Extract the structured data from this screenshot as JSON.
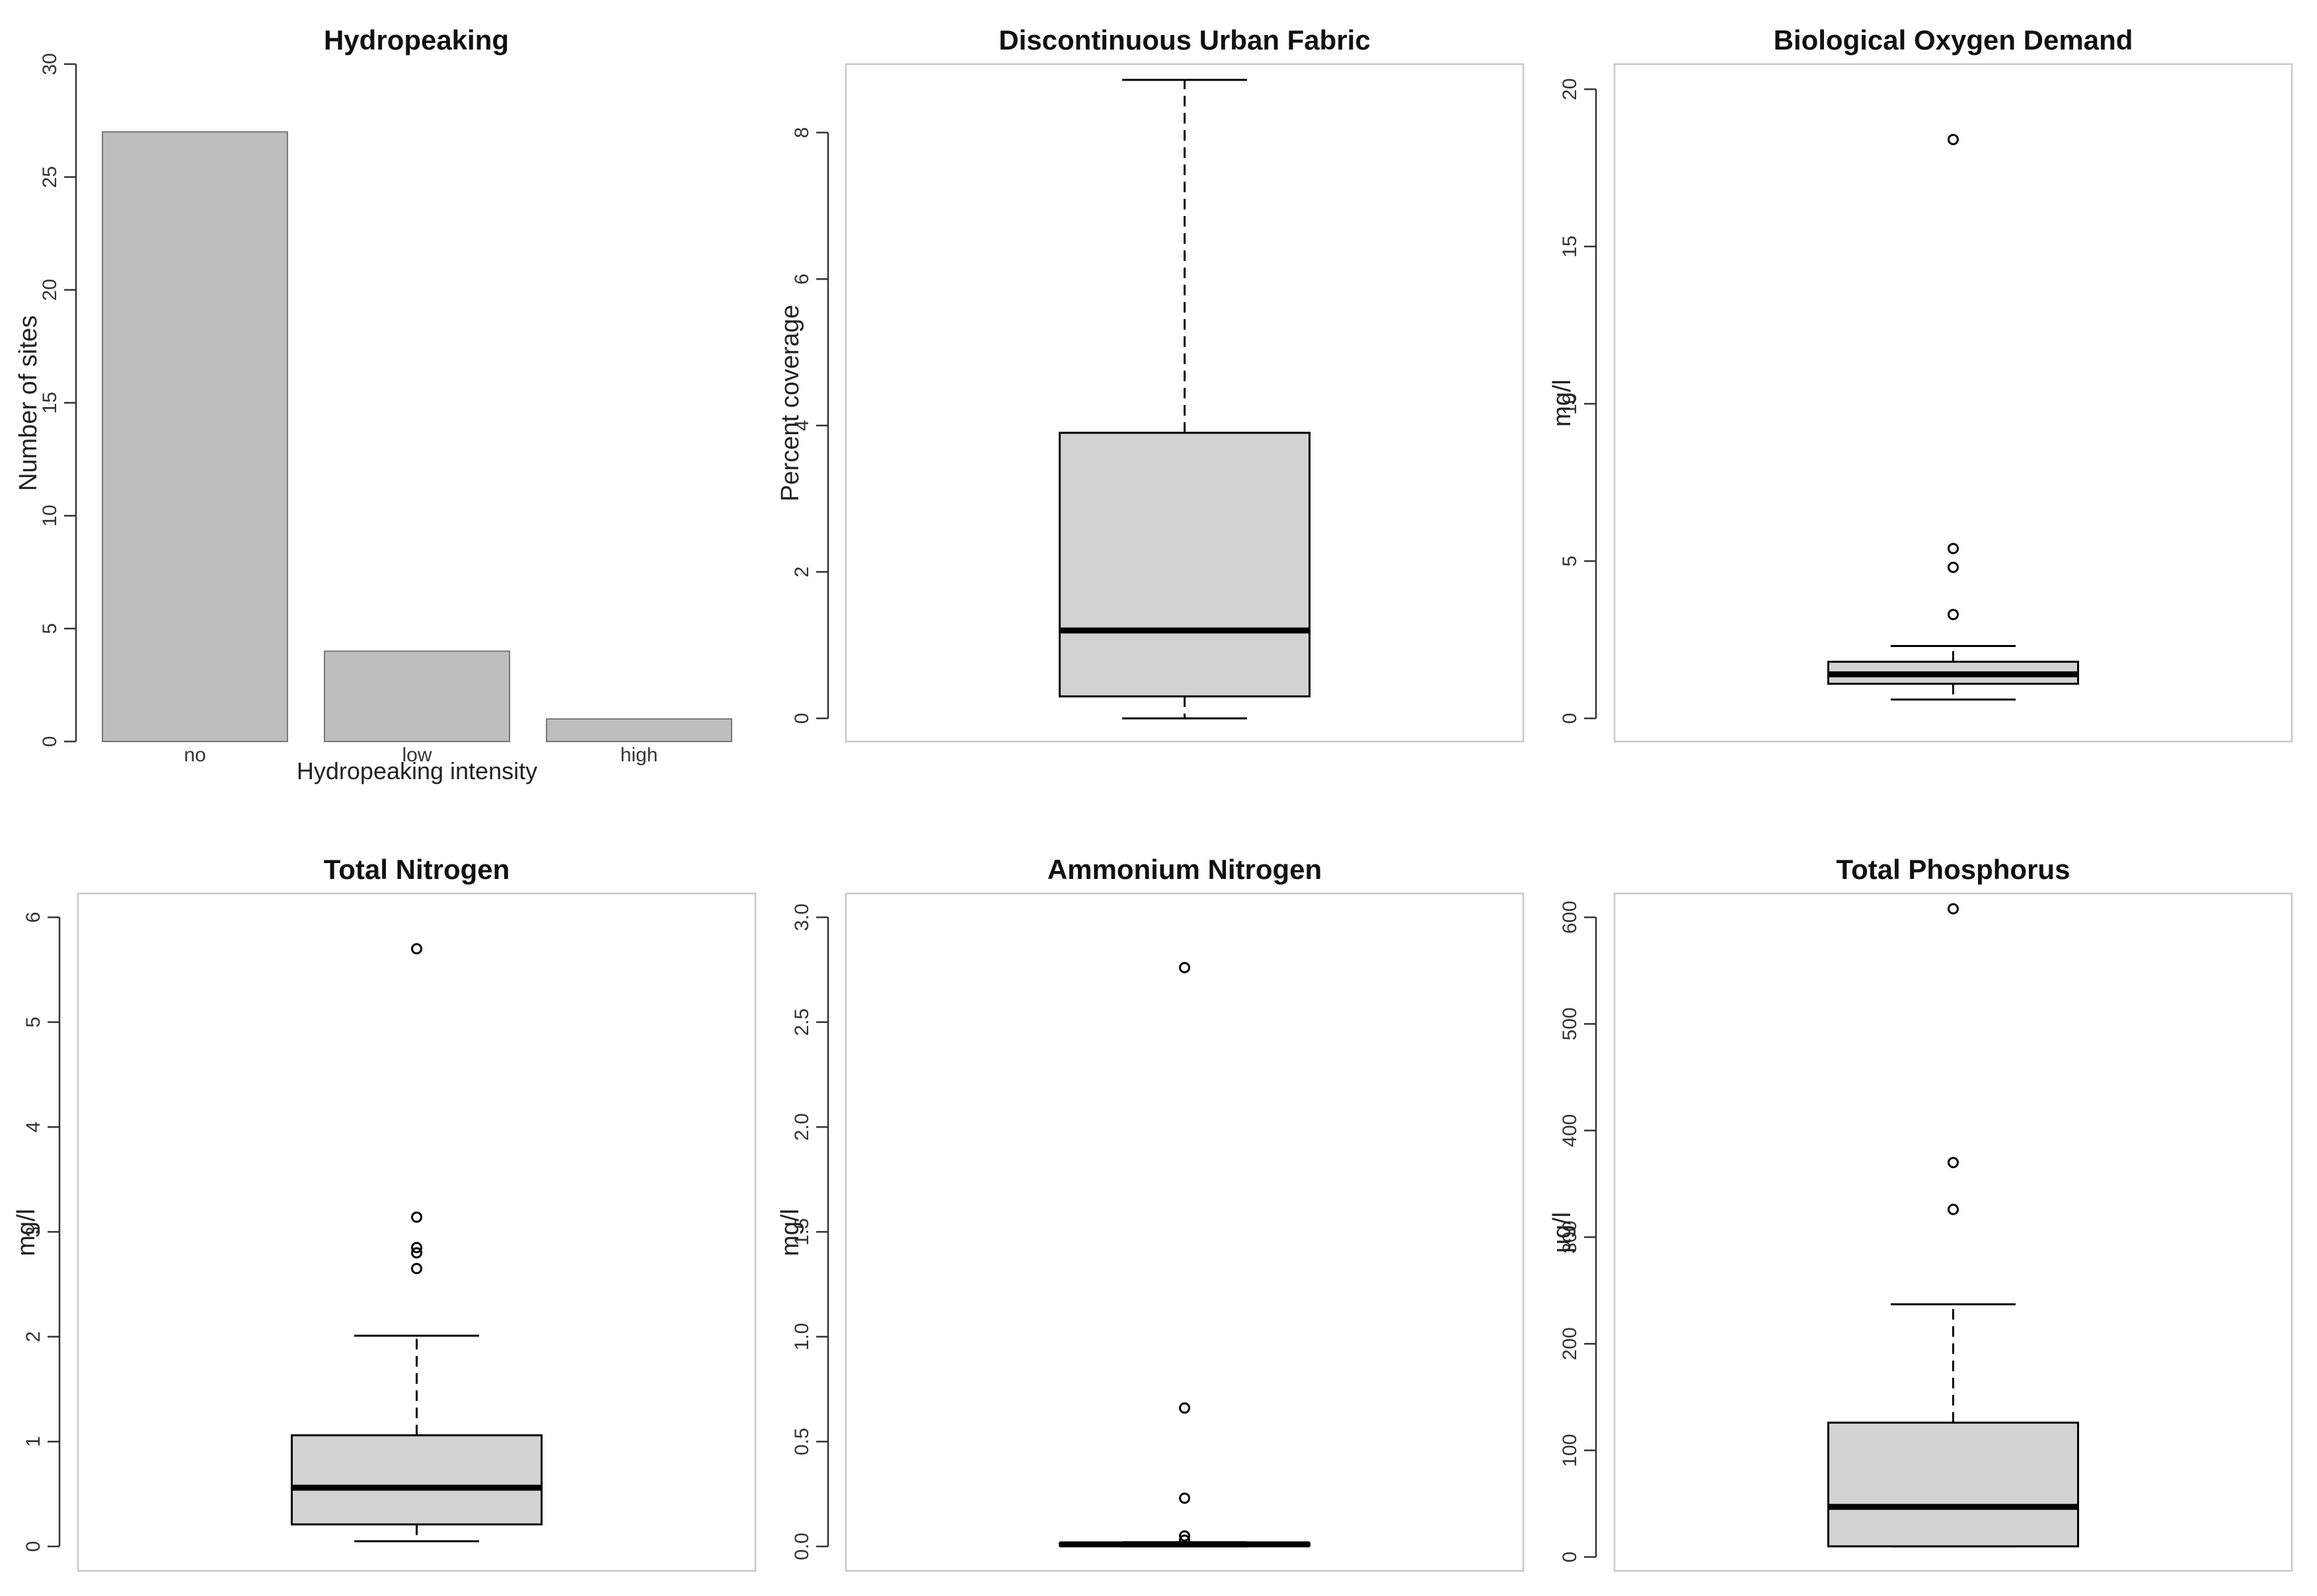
{
  "chart_data": [
    {
      "type": "bar",
      "title": "Hydropeaking",
      "xlabel": "Hydropeaking intensity",
      "ylabel": "Number of sites",
      "categories": [
        "no",
        "low",
        "high"
      ],
      "values": [
        27,
        4,
        1
      ],
      "ylim": [
        0,
        30
      ],
      "yticks": [
        "0",
        "5",
        "10",
        "15",
        "20",
        "25",
        "30"
      ],
      "bar_color": "#bebebe"
    },
    {
      "type": "box",
      "title": "Discontinuous Urban Fabric",
      "ylabel": "Percent coverage",
      "ylim": [
        0,
        8.8
      ],
      "yticks": [
        "0",
        "2",
        "4",
        "6",
        "8"
      ],
      "stats": {
        "min": 0.0,
        "q1": 0.3,
        "median": 1.2,
        "q3": 3.9,
        "max": 8.72
      },
      "outliers": []
    },
    {
      "type": "box",
      "title": "Biological Oxygen Demand",
      "ylabel": "mg/l",
      "ylim": [
        0,
        20
      ],
      "yticks": [
        "0",
        "5",
        "10",
        "15",
        "20"
      ],
      "stats": {
        "min": 0.6,
        "q1": 1.1,
        "median": 1.4,
        "q3": 1.8,
        "max": 2.3
      },
      "outliers": [
        3.3,
        4.8,
        5.4,
        18.4
      ]
    },
    {
      "type": "box",
      "title": "Total Nitrogen",
      "ylabel": "mg/l",
      "ylim": [
        0,
        6
      ],
      "yticks": [
        "0",
        "1",
        "2",
        "3",
        "4",
        "5",
        "6"
      ],
      "stats": {
        "min": 0.05,
        "q1": 0.21,
        "median": 0.56,
        "q3": 1.06,
        "max": 2.01
      },
      "outliers": [
        2.65,
        2.8,
        2.85,
        3.14,
        5.7
      ]
    },
    {
      "type": "box",
      "title": "Ammonium Nitrogen",
      "ylabel": "mg/l",
      "ylim": [
        0,
        3
      ],
      "yticks": [
        "0.0",
        "0.5",
        "1.0",
        "1.5",
        "2.0",
        "2.5",
        "3.0"
      ],
      "stats": {
        "min": 0.0,
        "q1": 0.005,
        "median": 0.01,
        "q3": 0.015,
        "max": 0.02
      },
      "outliers": [
        0.03,
        0.05,
        0.23,
        0.66,
        2.76
      ]
    },
    {
      "type": "box",
      "title": "Total Phosphorus",
      "ylabel": "µg/l",
      "ylim": [
        0,
        600
      ],
      "yticks": [
        "0",
        "100",
        "200",
        "300",
        "400",
        "500",
        "600"
      ],
      "stats": {
        "min": 10,
        "q1": 10,
        "median": 47,
        "q3": 126,
        "max": 237
      },
      "outliers": [
        326,
        370,
        608
      ]
    }
  ],
  "colors": {
    "box_fill": "#d3d3d3",
    "stroke": "#000000",
    "frame": "#c8c8c8"
  }
}
